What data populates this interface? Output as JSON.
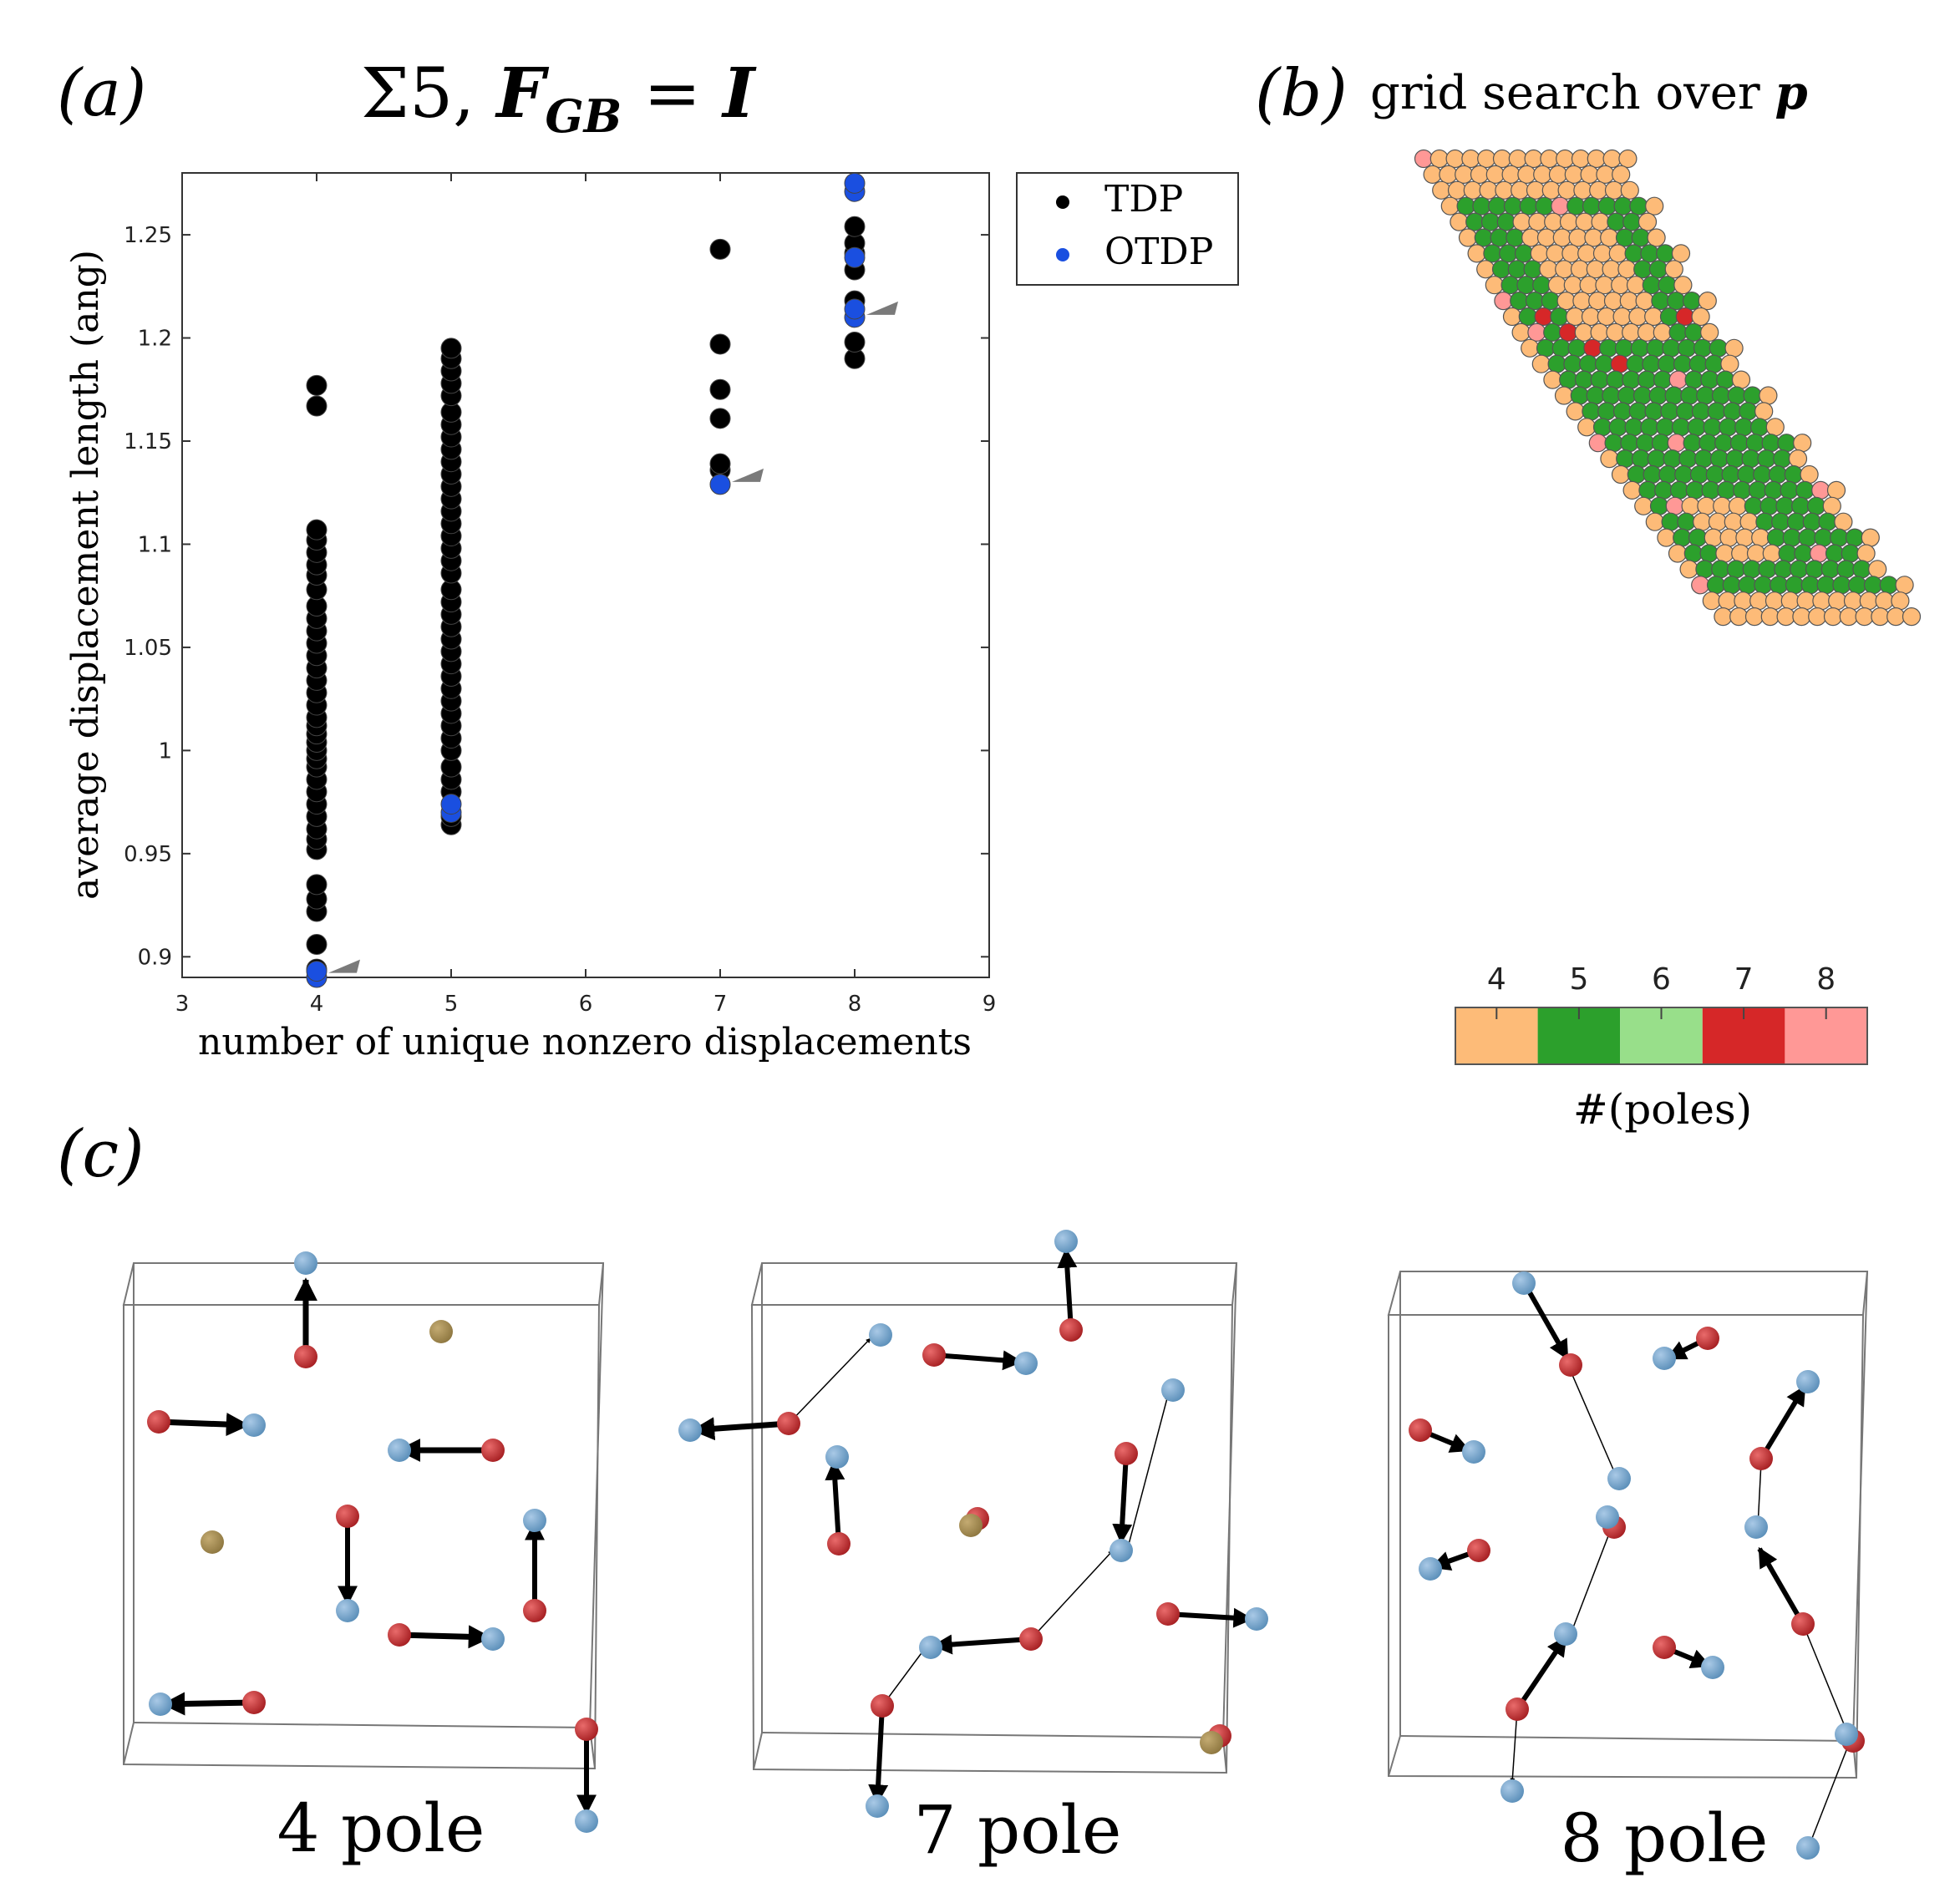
{
  "panels": {
    "a": {
      "label": "(a)",
      "title_main": "Σ5, ",
      "title_F": "F",
      "title_sub": "GB",
      "title_eq": " = ",
      "title_I": "I"
    },
    "b": {
      "label": "(b)",
      "title_text": "grid search over ",
      "title_p": "p",
      "colorbar": {
        "ticks": [
          "4",
          "5",
          "6",
          "7",
          "8"
        ],
        "colors": [
          "#fdbb78",
          "#2ca02c",
          "#98df8a",
          "#d62728",
          "#ff9896"
        ],
        "label": "#(poles)"
      }
    },
    "c": {
      "label": "(c)",
      "structures": [
        {
          "label": "4 pole"
        },
        {
          "label": "7 pole"
        },
        {
          "label": "8 pole"
        }
      ]
    }
  },
  "chart_data": {
    "type": "scatter",
    "title": "Σ5, F_GB = I",
    "xlabel": "number of unique nonzero displacements",
    "ylabel": "average displacement length (ang)",
    "xlim": [
      3,
      9
    ],
    "ylim": [
      0.89,
      1.28
    ],
    "xticks": [
      "3",
      "4",
      "5",
      "6",
      "7",
      "8",
      "9"
    ],
    "yticks": [
      "0.9",
      "0.95",
      "1",
      "1.05",
      "1.1",
      "1.15",
      "1.2",
      "1.25"
    ],
    "legend": {
      "position": "outside-top-right",
      "entries": [
        "TDP",
        "OTDP"
      ]
    },
    "series": [
      {
        "name": "TDP",
        "color": "#000000",
        "points": [
          [
            4,
            0.894
          ],
          [
            4,
            0.906
          ],
          [
            4,
            0.922
          ],
          [
            4,
            0.928
          ],
          [
            4,
            0.935
          ],
          [
            4,
            0.952
          ],
          [
            4,
            0.957
          ],
          [
            4,
            0.962
          ],
          [
            4,
            0.968
          ],
          [
            4,
            0.974
          ],
          [
            4,
            0.98
          ],
          [
            4,
            0.986
          ],
          [
            4,
            0.992
          ],
          [
            4,
            0.996
          ],
          [
            4,
            1.0
          ],
          [
            4,
            1.004
          ],
          [
            4,
            1.008
          ],
          [
            4,
            1.012
          ],
          [
            4,
            1.016
          ],
          [
            4,
            1.022
          ],
          [
            4,
            1.028
          ],
          [
            4,
            1.034
          ],
          [
            4,
            1.04
          ],
          [
            4,
            1.046
          ],
          [
            4,
            1.052
          ],
          [
            4,
            1.058
          ],
          [
            4,
            1.064
          ],
          [
            4,
            1.07
          ],
          [
            4,
            1.078
          ],
          [
            4,
            1.085
          ],
          [
            4,
            1.09
          ],
          [
            4,
            1.096
          ],
          [
            4,
            1.102
          ],
          [
            4,
            1.107
          ],
          [
            4,
            1.167
          ],
          [
            4,
            1.177
          ],
          [
            5,
            0.964
          ],
          [
            5,
            0.968
          ],
          [
            5,
            0.98
          ],
          [
            5,
            0.986
          ],
          [
            5,
            0.992
          ],
          [
            5,
            1.0
          ],
          [
            5,
            1.006
          ],
          [
            5,
            1.012
          ],
          [
            5,
            1.018
          ],
          [
            5,
            1.024
          ],
          [
            5,
            1.03
          ],
          [
            5,
            1.036
          ],
          [
            5,
            1.042
          ],
          [
            5,
            1.048
          ],
          [
            5,
            1.054
          ],
          [
            5,
            1.06
          ],
          [
            5,
            1.066
          ],
          [
            5,
            1.072
          ],
          [
            5,
            1.078
          ],
          [
            5,
            1.086
          ],
          [
            5,
            1.092
          ],
          [
            5,
            1.098
          ],
          [
            5,
            1.104
          ],
          [
            5,
            1.11
          ],
          [
            5,
            1.116
          ],
          [
            5,
            1.122
          ],
          [
            5,
            1.128
          ],
          [
            5,
            1.134
          ],
          [
            5,
            1.14
          ],
          [
            5,
            1.146
          ],
          [
            5,
            1.152
          ],
          [
            5,
            1.158
          ],
          [
            5,
            1.164
          ],
          [
            5,
            1.172
          ],
          [
            5,
            1.178
          ],
          [
            5,
            1.184
          ],
          [
            5,
            1.19
          ],
          [
            5,
            1.195
          ],
          [
            7,
            1.136
          ],
          [
            7,
            1.139
          ],
          [
            7,
            1.161
          ],
          [
            7,
            1.175
          ],
          [
            7,
            1.197
          ],
          [
            7,
            1.243
          ],
          [
            8,
            1.19
          ],
          [
            8,
            1.198
          ],
          [
            8,
            1.218
          ],
          [
            8,
            1.233
          ],
          [
            8,
            1.241
          ],
          [
            8,
            1.246
          ],
          [
            8,
            1.254
          ]
        ]
      },
      {
        "name": "OTDP",
        "color": "#1a4fe0",
        "points": [
          [
            4,
            0.89
          ],
          [
            4,
            0.893
          ],
          [
            5,
            0.97
          ],
          [
            5,
            0.974
          ],
          [
            7,
            1.129
          ],
          [
            8,
            1.21
          ],
          [
            8,
            1.214
          ],
          [
            8,
            1.239
          ],
          [
            8,
            1.271
          ],
          [
            8,
            1.275
          ]
        ]
      }
    ],
    "annotations": [
      {
        "type": "arrowhead",
        "at": [
          4,
          0.893
        ]
      },
      {
        "type": "arrowhead",
        "at": [
          7,
          1.131
        ]
      },
      {
        "type": "arrowhead",
        "at": [
          8,
          1.212
        ]
      }
    ]
  }
}
